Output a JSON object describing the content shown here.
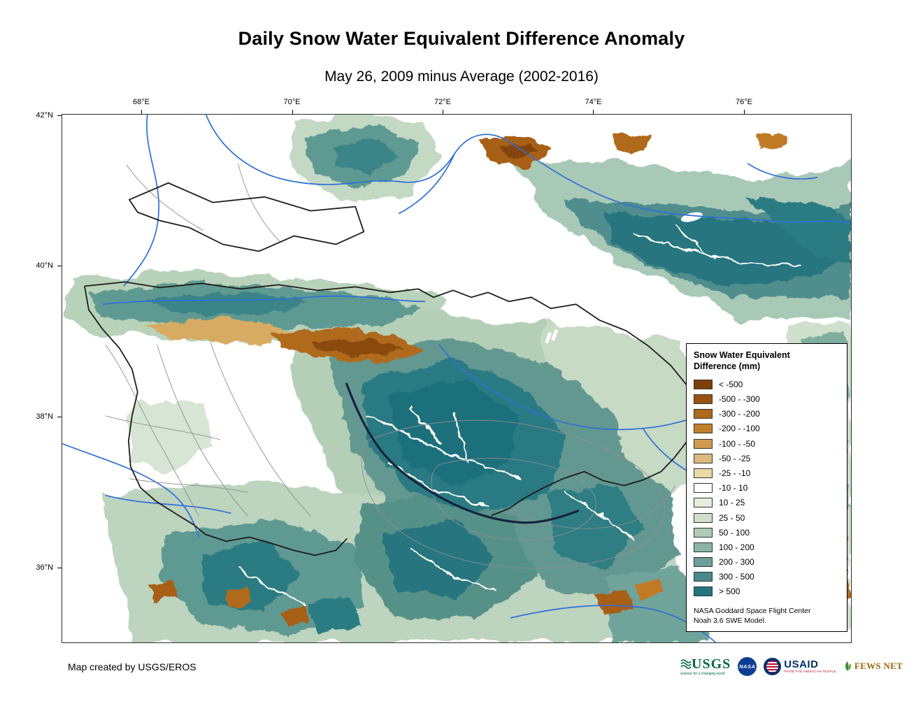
{
  "title": "Daily Snow Water Equivalent Difference Anomaly",
  "subtitle": "May 26, 2009 minus Average (2002-2016)",
  "map": {
    "x_ticks": [
      "68°E",
      "70°E",
      "72°E",
      "74°E",
      "76°E"
    ],
    "y_ticks": [
      "42°N",
      "40°N",
      "38°N",
      "36°N"
    ]
  },
  "legend": {
    "title_line1": "Snow Water Equivalent",
    "title_line2": "Difference (mm)",
    "classes": [
      {
        "label": "< -500",
        "color": "#7e3f0a"
      },
      {
        "label": "-500 - -300",
        "color": "#98540f"
      },
      {
        "label": "-300 - -200",
        "color": "#ad6a1c"
      },
      {
        "label": "-200 - -100",
        "color": "#c1802e"
      },
      {
        "label": "-100 - -50",
        "color": "#d09a4f"
      },
      {
        "label": "-50 - -25",
        "color": "#ddb97e"
      },
      {
        "label": "-25 - -10",
        "color": "#ecd9a8"
      },
      {
        "label": "-10 - 10",
        "color": "#ffffff"
      },
      {
        "label": "10 - 25",
        "color": "#e6efdd"
      },
      {
        "label": "25 - 50",
        "color": "#cfe0c8"
      },
      {
        "label": "50 - 100",
        "color": "#afccb5"
      },
      {
        "label": "100 - 200",
        "color": "#8db5a7"
      },
      {
        "label": "200 - 300",
        "color": "#6b9f99"
      },
      {
        "label": "300 - 500",
        "color": "#49898c"
      },
      {
        "label": "> 500",
        "color": "#26747f"
      }
    ],
    "credit_line1": "NASA Goddard Space Flight Center",
    "credit_line2": "Noah 3.6 SWE Model."
  },
  "footer": {
    "credit": "Map created by USGS/EROS",
    "logos": {
      "usgs": {
        "text": "USGS",
        "tagline": "science for a changing world"
      },
      "nasa": {
        "text": "NASA"
      },
      "usaid": {
        "text": "USAID",
        "tagline": "FROM THE AMERICAN PEOPLE"
      },
      "fewsnet": {
        "text": "FEWS NET"
      }
    }
  }
}
